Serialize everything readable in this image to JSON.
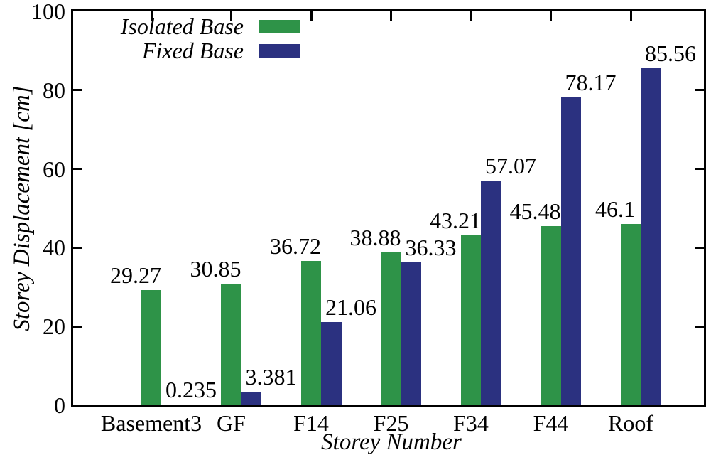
{
  "chart_data": {
    "type": "bar",
    "title": "",
    "categories": [
      "Basement3",
      "GF",
      "F14",
      "F25",
      "F34",
      "F44",
      "Roof"
    ],
    "series": [
      {
        "name": "Isolated Base",
        "color": "#2e9348",
        "values": [
          29.27,
          30.85,
          36.72,
          38.88,
          43.21,
          45.48,
          46.1
        ]
      },
      {
        "name": "Fixed Base",
        "color": "#2b3180",
        "values": [
          0.235,
          3.381,
          21.06,
          36.33,
          57.07,
          78.17,
          85.56
        ]
      }
    ],
    "xlabel": "Storey Number",
    "ylabel": "Storey Displacement [cm]",
    "ylim": [
      0,
      100
    ],
    "yticks": [
      0,
      20,
      40,
      60,
      80,
      100
    ],
    "legend_position": "top-left",
    "grid": false,
    "bar_value_labels": true,
    "axis_color": "#000000",
    "text_color": "#000000",
    "background_color": "#ffffff"
  }
}
